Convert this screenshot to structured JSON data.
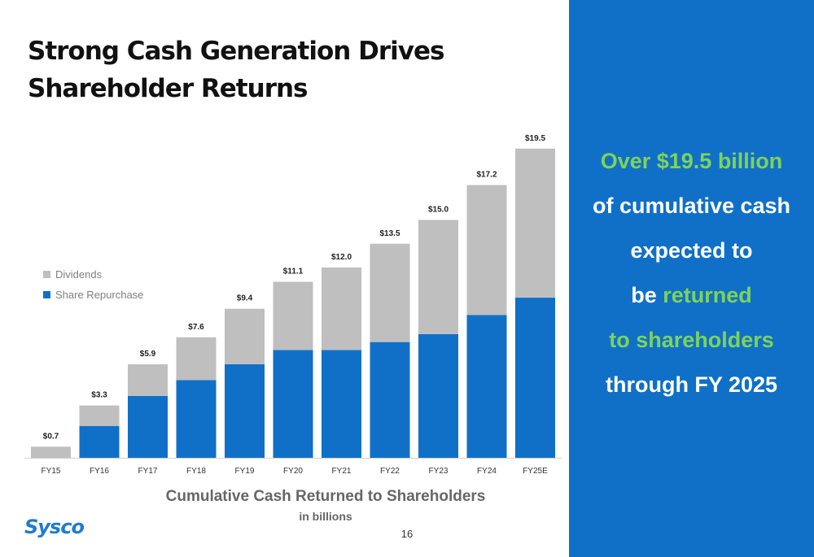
{
  "slide": {
    "title_line1": "Strong Cash Generation Drives",
    "title_line2": "Shareholder Returns",
    "page_number": "16",
    "logo_text": "Sysco"
  },
  "side_panel": {
    "line1": "Over $19.5 billion",
    "line2": "of cumulative cash",
    "line3": "expected to",
    "line4_prefix": "be ",
    "line4_highlight": "returned",
    "line5": "to shareholders",
    "line6": "through FY 2025",
    "background": "#1070c8",
    "highlight_color": "#7dd35a"
  },
  "chart_data": {
    "type": "bar",
    "stacked": true,
    "title": "Cumulative Cash Returned to Shareholders",
    "subtitle": "in billions",
    "categories": [
      "FY15",
      "FY16",
      "FY17",
      "FY18",
      "FY19",
      "FY20",
      "FY21",
      "FY22",
      "FY23",
      "FY24",
      "FY25E"
    ],
    "series": [
      {
        "name": "Share Repurchase",
        "color": "#1070c8",
        "values": [
          0.0,
          2.0,
          3.9,
          4.9,
          5.9,
          6.8,
          6.8,
          7.3,
          7.8,
          9.0,
          10.1
        ]
      },
      {
        "name": "Dividends",
        "color": "#bfbfbf",
        "values": [
          0.7,
          1.3,
          2.0,
          2.7,
          3.5,
          4.3,
          5.2,
          6.2,
          7.2,
          8.2,
          9.4
        ]
      }
    ],
    "totals": [
      0.7,
      3.3,
      5.9,
      7.6,
      9.4,
      11.1,
      12.0,
      13.5,
      15.0,
      17.2,
      19.5
    ],
    "total_labels": [
      "$0.7",
      "$3.3",
      "$5.9",
      "$7.6",
      "$9.4",
      "$11.1",
      "$12.0",
      "$13.5",
      "$15.0",
      "$17.2",
      "$19.5"
    ],
    "legend": {
      "position": "left",
      "entries": [
        "Dividends",
        "Share Repurchase"
      ]
    },
    "ylim": [
      0,
      20
    ],
    "grid": false,
    "y_axis_visible": false
  }
}
